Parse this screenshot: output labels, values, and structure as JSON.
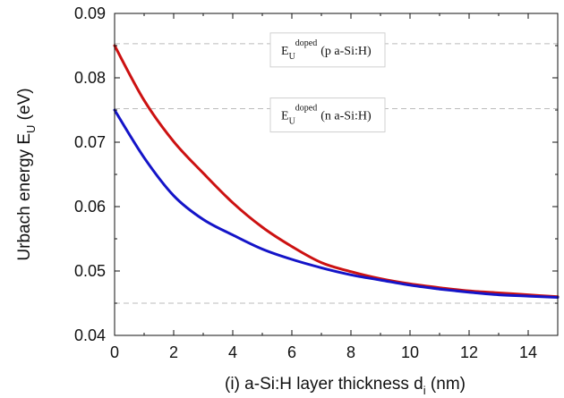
{
  "chart_data": {
    "type": "line",
    "xlabel": {
      "main": "(i) a-Si:H layer thickness d",
      "sub": "i",
      "unit": " (nm)"
    },
    "ylabel": {
      "main": "Urbach energy E",
      "sub": "U",
      "unit": " (eV)"
    },
    "xlim": [
      0,
      15
    ],
    "ylim": [
      0.04,
      0.09
    ],
    "xticks": [
      "0",
      "2",
      "4",
      "6",
      "8",
      "10",
      "12",
      "14"
    ],
    "yticks": [
      "0.04",
      "0.05",
      "0.06",
      "0.07",
      "0.08",
      "0.09"
    ],
    "grid": false,
    "colors": {
      "red_series": "#cc1111",
      "blue_series": "#1414c8",
      "reference_line": "#bbbbbb"
    },
    "series": [
      {
        "color": "#cc1111",
        "x": [
          0,
          1,
          2,
          3,
          4,
          5,
          6,
          7,
          8,
          9,
          10,
          11,
          12,
          13,
          14,
          15
        ],
        "values": [
          0.085,
          0.0765,
          0.0701,
          0.0652,
          0.0606,
          0.0568,
          0.0538,
          0.0513,
          0.0499,
          0.0488,
          0.048,
          0.0474,
          0.0469,
          0.0466,
          0.0463,
          0.046
        ]
      },
      {
        "color": "#1414c8",
        "x": [
          0,
          1,
          2,
          3,
          4,
          5,
          6,
          7,
          8,
          9,
          10,
          11,
          12,
          13,
          14,
          15
        ],
        "values": [
          0.075,
          0.0676,
          0.0617,
          0.058,
          0.0556,
          0.0534,
          0.0518,
          0.0505,
          0.0494,
          0.0486,
          0.0478,
          0.0472,
          0.0467,
          0.0463,
          0.0461,
          0.0459
        ]
      }
    ],
    "reference_lines": [
      {
        "y": 0.0853,
        "annotation": {
          "main": "E",
          "sub": "U",
          "sup": "doped",
          "rest": "(p a-Si:H)"
        }
      },
      {
        "y": 0.0752,
        "annotation": {
          "main": "E",
          "sub": "U",
          "sup": "doped",
          "rest": "(n a-Si:H)"
        }
      },
      {
        "y": 0.045,
        "annotation": null
      }
    ]
  }
}
